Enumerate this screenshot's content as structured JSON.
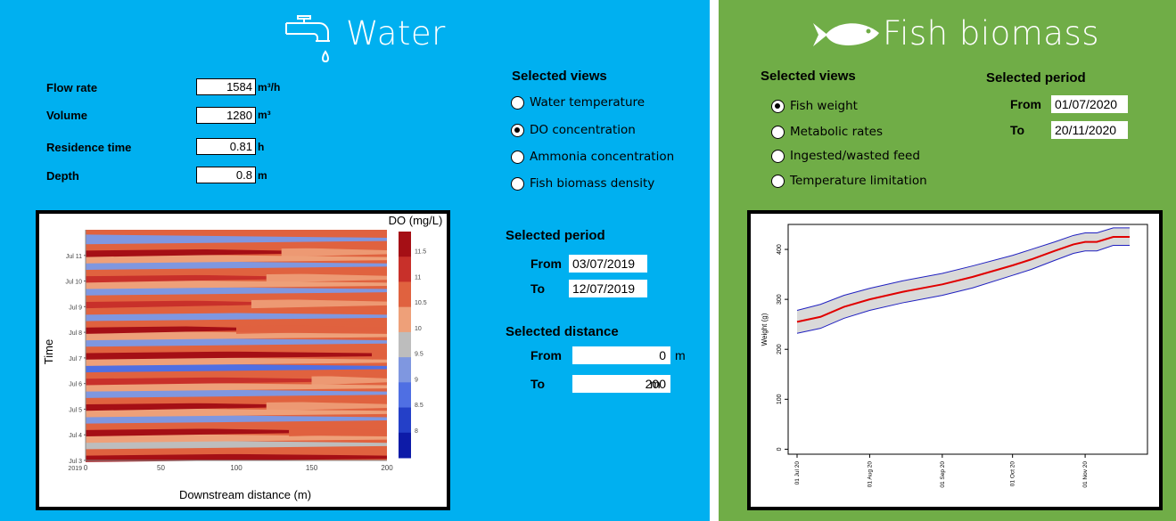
{
  "water": {
    "title": "Water",
    "params": [
      {
        "label": "Flow rate",
        "value": "1584",
        "unit": "m³/h"
      },
      {
        "label": "Volume",
        "value": "1280",
        "unit": "m³"
      },
      {
        "label": "Residence time",
        "value": "0.81",
        "unit": "h"
      },
      {
        "label": "Depth",
        "value": "0.8",
        "unit": "m"
      }
    ],
    "views_heading": "Selected views",
    "views": [
      {
        "label": "Water temperature",
        "selected": false
      },
      {
        "label": "DO concentration",
        "selected": true
      },
      {
        "label": "Ammonia concentration",
        "selected": false
      },
      {
        "label": "Fish biomass density",
        "selected": false
      }
    ],
    "period": {
      "heading": "Selected period",
      "from_label": "From",
      "from": "03/07/2019",
      "to_label": "To",
      "to": "12/07/2019"
    },
    "distance": {
      "heading": "Selected distance",
      "from_label": "From",
      "from": "0",
      "to_label": "To",
      "to": "200",
      "unit": "m"
    }
  },
  "fish": {
    "title": "Fish biomass",
    "views_heading": "Selected views",
    "views": [
      {
        "label": "Fish weight",
        "selected": true
      },
      {
        "label": "Metabolic rates",
        "selected": false
      },
      {
        "label": "Ingested/wasted feed",
        "selected": false
      },
      {
        "label": "Temperature limitation",
        "selected": false
      }
    ],
    "period": {
      "heading": "Selected period",
      "from_label": "From",
      "from": "01/07/2020",
      "to_label": "To",
      "to": "20/11/2020"
    }
  },
  "colors": {
    "water_bg": "#00b0f0",
    "fish_bg": "#70ad47"
  },
  "chart_data": [
    {
      "type": "heatmap",
      "title": "",
      "legend_title": "DO (mg/L)",
      "xlabel": "Downstream distance (m)",
      "ylabel": "Time",
      "xlim": [
        0,
        200
      ],
      "x_ticks": [
        "0",
        "50",
        "100",
        "150",
        "200"
      ],
      "y_ticks": [
        "Jul 3\n2019",
        "Jul 4",
        "Jul 5",
        "Jul 6",
        "Jul 7",
        "Jul 8",
        "Jul 9",
        "Jul 10",
        "Jul 11"
      ],
      "legend_ticks": [
        "11.5",
        "11",
        "10.5",
        "10",
        "9.5",
        "9",
        "8.5",
        "8"
      ],
      "legend_colors": [
        "#a50f15",
        "#c8302a",
        "#e0623f",
        "#eea079",
        "#bdbdbd",
        "#7f97e0",
        "#4f6fe3",
        "#2440c8",
        "#0d1ba8"
      ],
      "bands": [
        {
          "day": 0,
          "level": 11.8,
          "reach": 200
        },
        {
          "day": 0.25,
          "level": 10.8,
          "reach": 200
        },
        {
          "day": 0.5,
          "level": 9.5,
          "reach": 200
        },
        {
          "day": 0.75,
          "level": 10.4,
          "reach": 200
        },
        {
          "day": 1,
          "level": 11.8,
          "reach": 135
        },
        {
          "day": 1.25,
          "level": 10.7,
          "reach": 200
        },
        {
          "day": 1.5,
          "level": 9.3,
          "reach": 200
        },
        {
          "day": 1.75,
          "level": 10.3,
          "reach": 200
        },
        {
          "day": 2,
          "level": 11.5,
          "reach": 120
        },
        {
          "day": 2.25,
          "level": 10.7,
          "reach": 200
        },
        {
          "day": 2.5,
          "level": 9.4,
          "reach": 200
        },
        {
          "day": 2.75,
          "level": 10.4,
          "reach": 200
        },
        {
          "day": 3,
          "level": 11.3,
          "reach": 150
        },
        {
          "day": 3.25,
          "level": 10.6,
          "reach": 200
        },
        {
          "day": 3.5,
          "level": 8.9,
          "reach": 200
        },
        {
          "day": 3.75,
          "level": 10.2,
          "reach": 200
        },
        {
          "day": 4,
          "level": 11.9,
          "reach": 190
        },
        {
          "day": 4.25,
          "level": 10.8,
          "reach": 200
        },
        {
          "day": 4.5,
          "level": 9.2,
          "reach": 200
        },
        {
          "day": 4.75,
          "level": 10.4,
          "reach": 200
        },
        {
          "day": 5,
          "level": 11.8,
          "reach": 100
        },
        {
          "day": 5.25,
          "level": 10.6,
          "reach": 200
        },
        {
          "day": 5.5,
          "level": 9.3,
          "reach": 200
        },
        {
          "day": 5.75,
          "level": 10.5,
          "reach": 200
        },
        {
          "day": 6,
          "level": 11.4,
          "reach": 110
        },
        {
          "day": 6.25,
          "level": 10.6,
          "reach": 200
        },
        {
          "day": 6.5,
          "level": 9.4,
          "reach": 200
        },
        {
          "day": 6.75,
          "level": 10.4,
          "reach": 200
        },
        {
          "day": 7,
          "level": 11.3,
          "reach": 120
        },
        {
          "day": 7.25,
          "level": 10.6,
          "reach": 200
        },
        {
          "day": 7.5,
          "level": 9.3,
          "reach": 200
        },
        {
          "day": 7.75,
          "level": 10.3,
          "reach": 200
        },
        {
          "day": 8,
          "level": 11.6,
          "reach": 130
        },
        {
          "day": 8.25,
          "level": 10.6,
          "reach": 200
        },
        {
          "day": 8.5,
          "level": 9.3,
          "reach": 200
        }
      ]
    },
    {
      "type": "line",
      "title": "",
      "xlabel": "",
      "ylabel": "Weight (g)",
      "ylim": [
        -10,
        450
      ],
      "y_ticks": [
        0,
        100,
        200,
        300,
        400
      ],
      "x_ticks": [
        "01 Jul 20",
        "01 Aug 20",
        "01 Sep 20",
        "01 Oct 20",
        "01 Nov 20"
      ],
      "x_days": [
        0,
        31,
        62,
        92,
        123
      ],
      "x_range": [
        0,
        142
      ],
      "series": [
        {
          "role": "mean",
          "color": "#e00000",
          "x": [
            0,
            10,
            20,
            31,
            45,
            62,
            75,
            92,
            100,
            110,
            118,
            123,
            128,
            135,
            142
          ],
          "values": [
            255,
            265,
            285,
            300,
            315,
            330,
            345,
            368,
            380,
            397,
            410,
            415,
            415,
            425,
            425
          ]
        },
        {
          "role": "upper",
          "color": "#2020c0",
          "x": [
            0,
            10,
            20,
            31,
            45,
            62,
            75,
            92,
            100,
            110,
            118,
            123,
            128,
            135,
            142
          ],
          "values": [
            278,
            290,
            308,
            322,
            337,
            352,
            367,
            388,
            400,
            415,
            428,
            433,
            433,
            443,
            443
          ]
        },
        {
          "role": "lower",
          "color": "#2020c0",
          "x": [
            0,
            10,
            20,
            31,
            45,
            62,
            75,
            92,
            100,
            110,
            118,
            123,
            128,
            135,
            142
          ],
          "values": [
            232,
            242,
            262,
            278,
            293,
            308,
            323,
            348,
            360,
            378,
            392,
            397,
            397,
            408,
            408
          ]
        }
      ]
    }
  ]
}
